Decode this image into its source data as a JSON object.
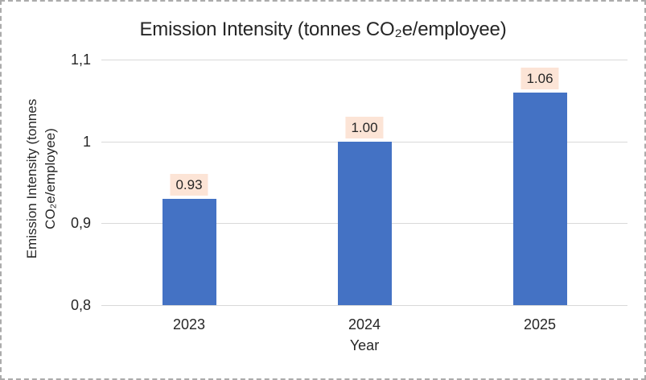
{
  "frame": {
    "border_color": "#ababab",
    "background": "#ffffff"
  },
  "chart_data": {
    "type": "bar",
    "title": "Emission Intensity (tonnes CO₂e/employee)",
    "xlabel": "Year",
    "ylabel_lines": [
      "Emission Intensity (tonnes",
      "CO₂e/employee)"
    ],
    "categories": [
      "2023",
      "2024",
      "2025"
    ],
    "series": [
      {
        "name": "Emission Intensity",
        "values": [
          0.93,
          1.0,
          1.06
        ]
      }
    ],
    "data_labels": [
      "0.93",
      "1.00",
      "1.06"
    ],
    "ylim": [
      0.8,
      1.1
    ],
    "yticks": [
      {
        "value": 1.1,
        "label": "1,1"
      },
      {
        "value": 1.0,
        "label": "1"
      },
      {
        "value": 0.9,
        "label": "0,9"
      },
      {
        "value": 0.8,
        "label": "0,8"
      }
    ],
    "grid": true,
    "legend_position": "none",
    "colors": {
      "bar": "#4472C4",
      "data_label_bg": "#FCE4D6",
      "gridline": "#D9D9D9",
      "axis_line": "#D9D9D9",
      "text": "#262626"
    }
  }
}
